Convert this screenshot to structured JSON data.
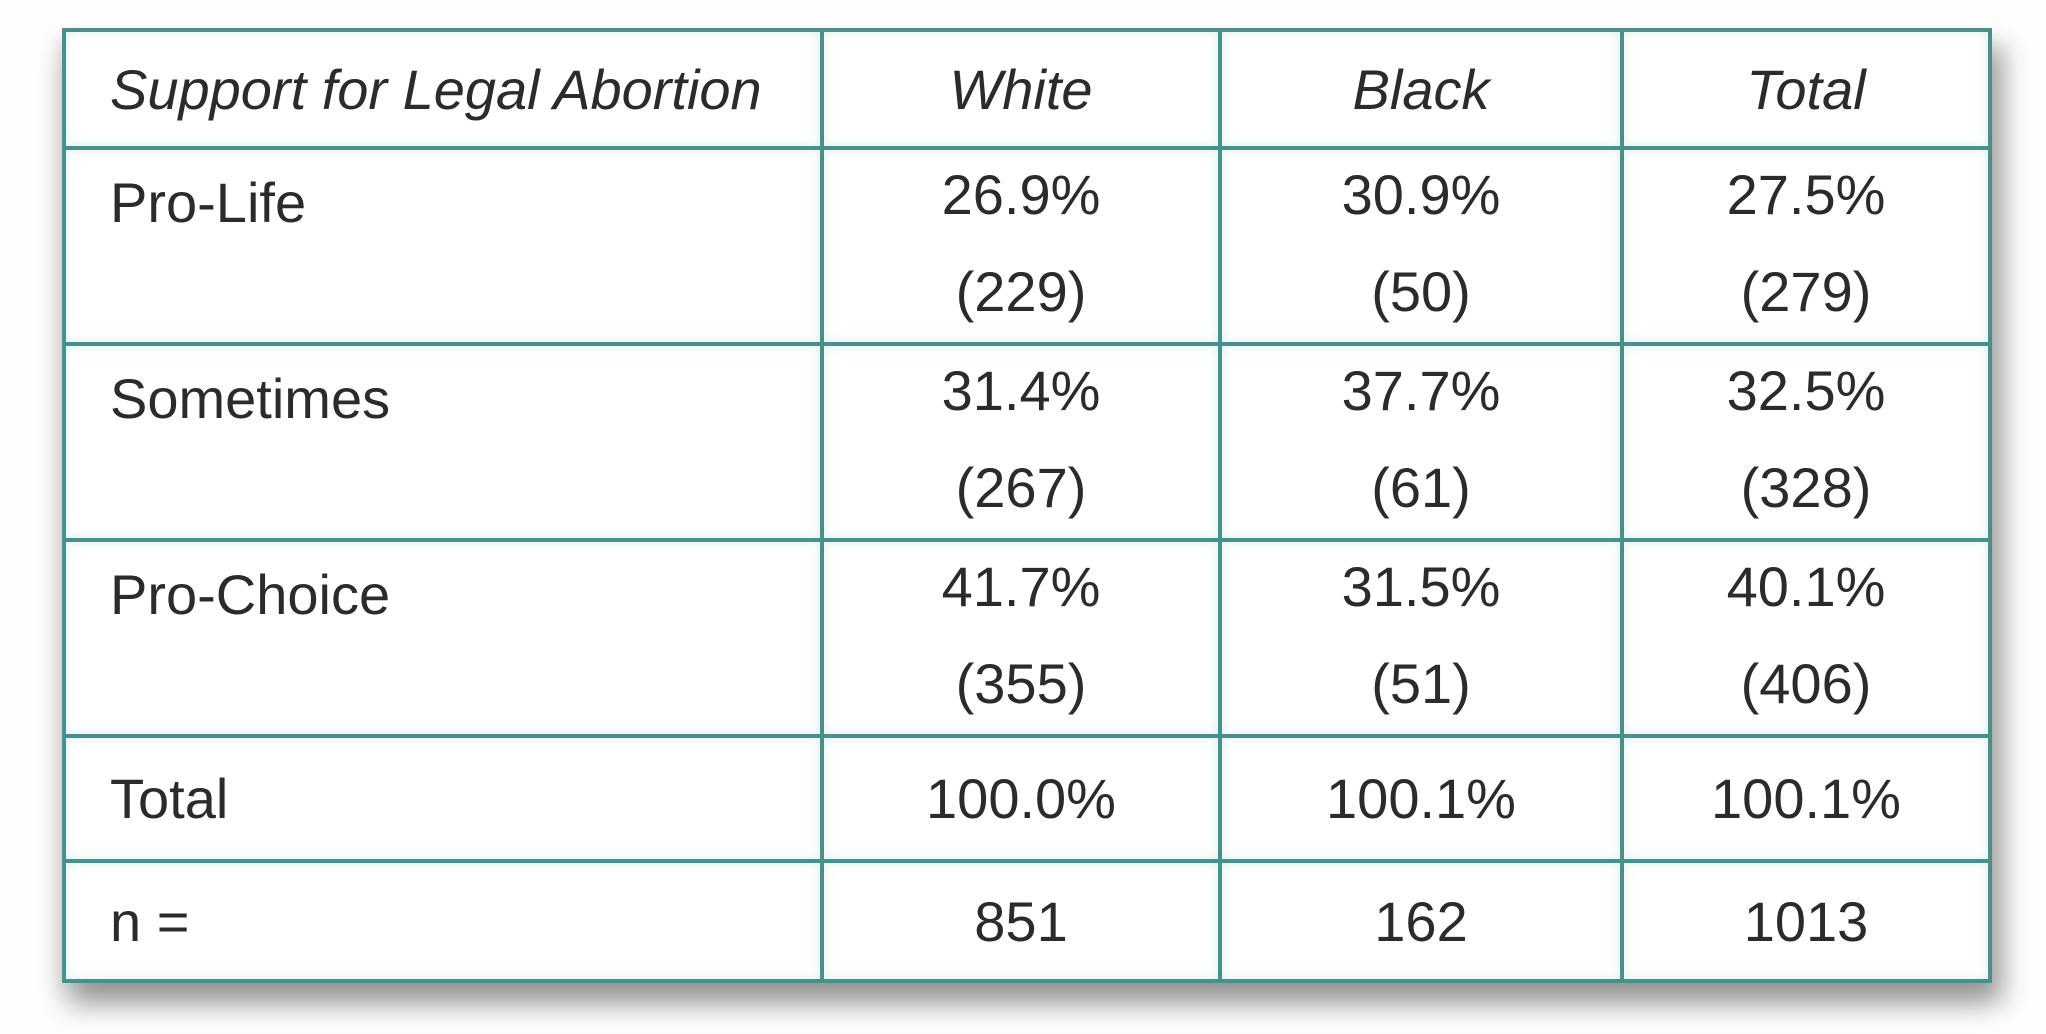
{
  "table": {
    "header": {
      "label": "Support for Legal Abortion",
      "cols": [
        "White",
        "Black",
        "Total"
      ]
    },
    "rows": [
      {
        "label": "Pro-Life",
        "cells": [
          {
            "pct": "26.9%",
            "count": "(229)"
          },
          {
            "pct": "30.9%",
            "count": "(50)"
          },
          {
            "pct": "27.5%",
            "count": "(279)"
          }
        ]
      },
      {
        "label": "Sometimes",
        "cells": [
          {
            "pct": "31.4%",
            "count": "(267)"
          },
          {
            "pct": "37.7%",
            "count": "(61)"
          },
          {
            "pct": "32.5%",
            "count": "(328)"
          }
        ]
      },
      {
        "label": "Pro-Choice",
        "cells": [
          {
            "pct": "41.7%",
            "count": "(355)"
          },
          {
            "pct": "31.5%",
            "count": "(51)"
          },
          {
            "pct": "40.1%",
            "count": "(406)"
          }
        ]
      }
    ],
    "summary_rows": [
      {
        "label": "Total",
        "values": [
          "100.0%",
          "100.1%",
          "100.1%"
        ]
      },
      {
        "label": "n =",
        "values": [
          "851",
          "162",
          "1013"
        ]
      }
    ]
  },
  "colors": {
    "border": "#47908c",
    "text": "#2b2b2b",
    "cell_background": "#fefffe",
    "page_background": "#fdfdfd"
  },
  "chart_data": {
    "type": "table",
    "title": "Support for Legal Abortion",
    "columns": [
      "Support for Legal Abortion",
      "White",
      "Black",
      "Total"
    ],
    "rows": [
      [
        "Pro-Life",
        "26.9% (229)",
        "30.9% (50)",
        "27.5% (279)"
      ],
      [
        "Sometimes",
        "31.4% (267)",
        "37.7% (61)",
        "32.5% (328)"
      ],
      [
        "Pro-Choice",
        "41.7% (355)",
        "31.5% (51)",
        "40.1% (406)"
      ],
      [
        "Total",
        "100.0%",
        "100.1%",
        "100.1%"
      ],
      [
        "n =",
        "851",
        "162",
        "1013"
      ]
    ],
    "percentages": {
      "categories": [
        "Pro-Life",
        "Sometimes",
        "Pro-Choice"
      ],
      "series": [
        {
          "name": "White",
          "values": [
            26.9,
            31.4,
            41.7
          ],
          "counts": [
            229,
            267,
            355
          ],
          "n": 851
        },
        {
          "name": "Black",
          "values": [
            30.9,
            37.7,
            31.5
          ],
          "counts": [
            50,
            61,
            51
          ],
          "n": 162
        },
        {
          "name": "Total",
          "values": [
            27.5,
            32.5,
            40.1
          ],
          "counts": [
            279,
            328,
            406
          ],
          "n": 1013
        }
      ]
    }
  }
}
